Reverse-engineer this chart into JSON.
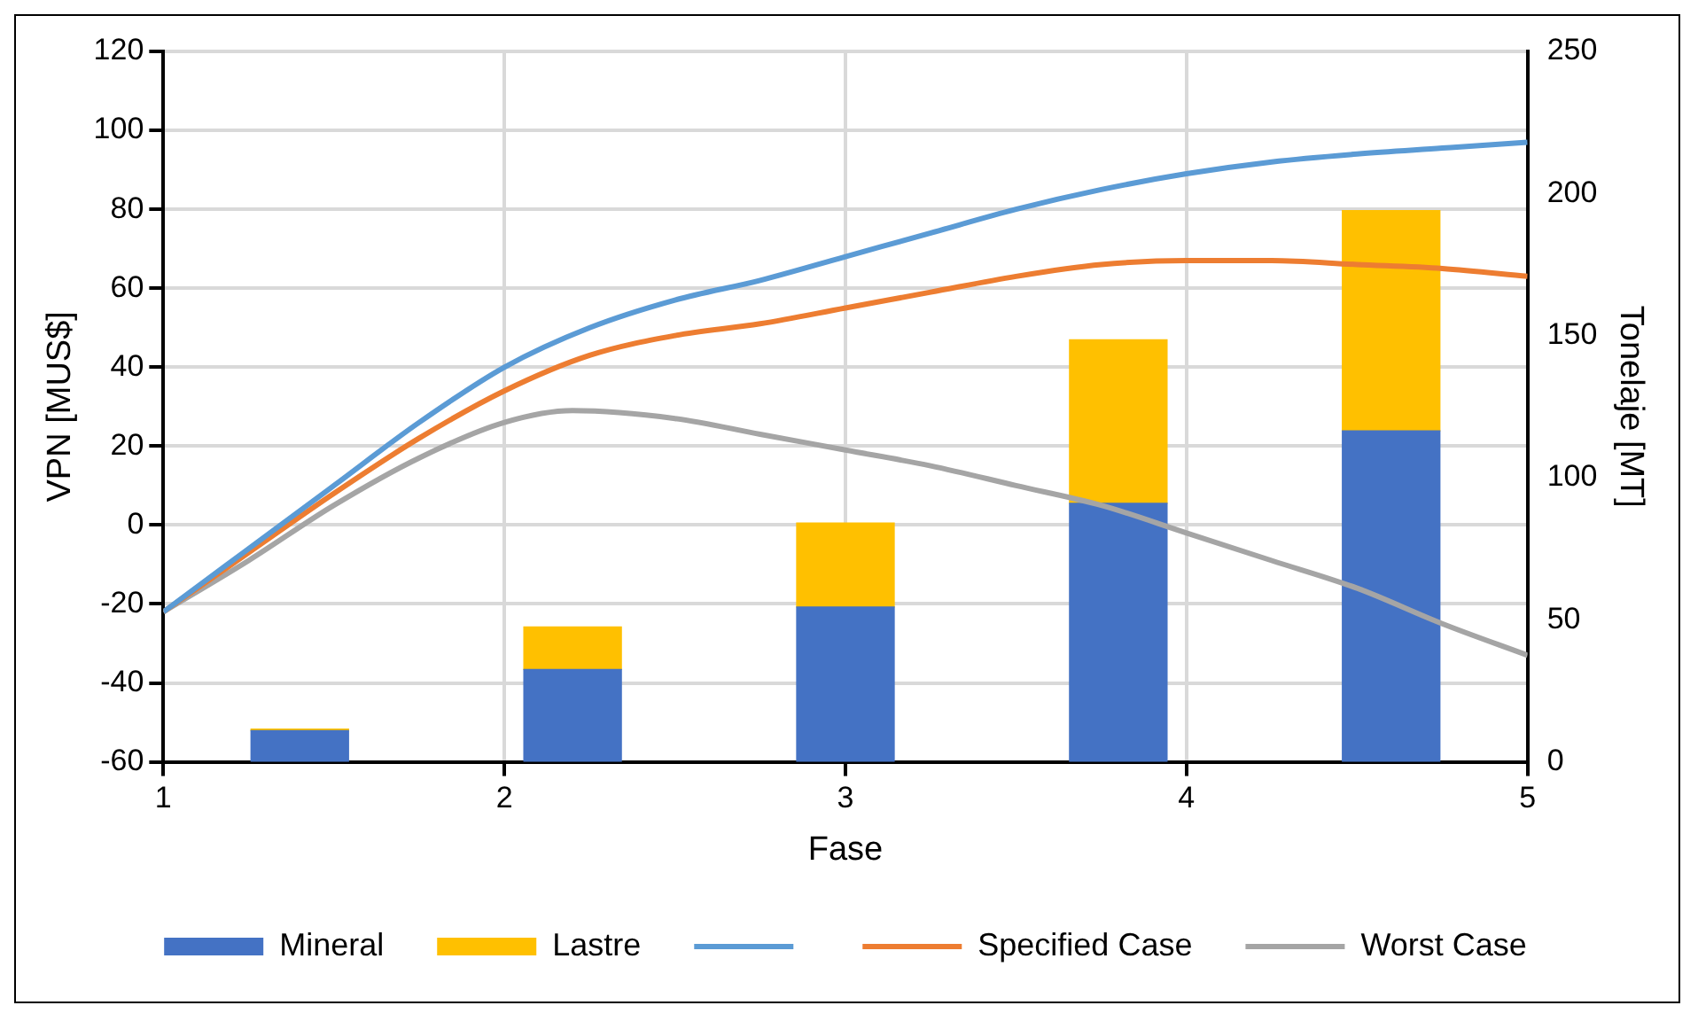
{
  "chart_data": {
    "type": "line",
    "xlabel": "Fase",
    "ylabel": "VPN [MUS$]",
    "y2label": "Tonelaje [MT]",
    "xlim": [
      1,
      5
    ],
    "xticks": [
      1,
      2,
      3,
      4,
      5
    ],
    "ylim": [
      -60,
      120
    ],
    "yticks": [
      -60,
      -40,
      -20,
      0,
      20,
      40,
      60,
      80,
      100,
      120
    ],
    "y2lim": [
      0,
      250
    ],
    "y2ticks": [
      0,
      50,
      100,
      150,
      200,
      250
    ],
    "grid": true,
    "legend": "bottom",
    "stacked": true,
    "marker": "none",
    "line_style": "solid",
    "series": [
      {
        "name": "Mineral",
        "type": "bar",
        "axis": "y2",
        "color": "#4472c4",
        "x": [
          1.4,
          2.2,
          3,
          3.8,
          4.6
        ],
        "values": [
          11,
          32.5,
          54.5,
          91,
          116.5
        ]
      },
      {
        "name": "Lastre",
        "type": "bar",
        "axis": "y2",
        "color": "#ffc000",
        "x": [
          1.4,
          2.2,
          3,
          3.8,
          4.6
        ],
        "values": [
          0.5,
          15,
          29.5,
          57.5,
          77.5
        ]
      },
      {
        "color": "#5b9bd5",
        "x": [
          1,
          1.25,
          1.5,
          1.75,
          2,
          2.25,
          2.5,
          2.75,
          3,
          3.25,
          3.5,
          3.75,
          4,
          4.25,
          4.5,
          4.75,
          5
        ],
        "values": [
          -22,
          -6,
          10,
          26,
          40,
          50,
          57,
          62,
          68,
          74,
          80,
          85,
          89,
          92,
          94,
          95.5,
          97
        ]
      },
      {
        "name": "Specified Case",
        "color": "#ed7d31",
        "x": [
          1,
          1.25,
          1.5,
          1.75,
          2,
          2.25,
          2.5,
          2.75,
          3,
          3.25,
          3.5,
          3.75,
          4,
          4.25,
          4.5,
          4.75,
          5
        ],
        "values": [
          -22,
          -7,
          8,
          22,
          34,
          43,
          48,
          51,
          55,
          59,
          63,
          66,
          67,
          67,
          66,
          65,
          63
        ]
      },
      {
        "name": "Worst Case",
        "color": "#a5a5a5",
        "x": [
          1,
          1.25,
          1.5,
          1.75,
          2,
          2.2,
          2.5,
          2.75,
          3,
          3.25,
          3.5,
          3.75,
          4,
          4.25,
          4.5,
          4.75,
          5
        ],
        "values": [
          -22,
          -9,
          5,
          17,
          26,
          29,
          27,
          23,
          19,
          15,
          10,
          5,
          -2,
          -9,
          -16,
          -25,
          -33
        ]
      }
    ]
  }
}
